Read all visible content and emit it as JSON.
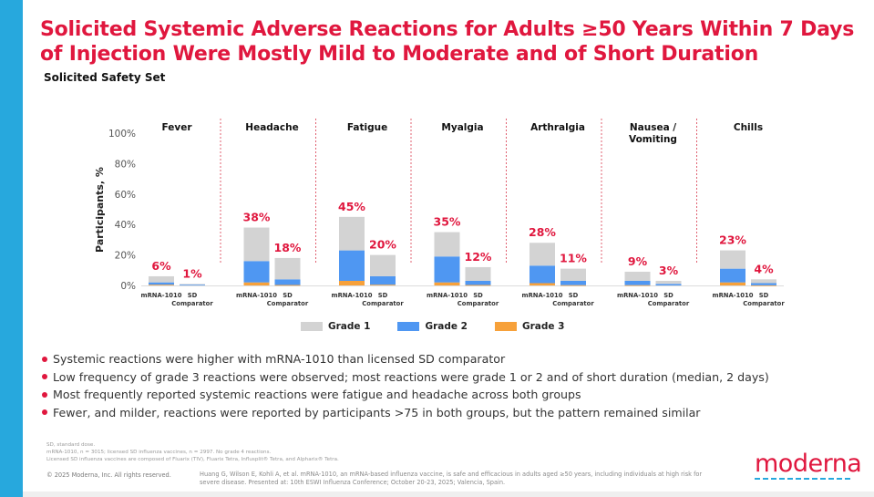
{
  "slide": {
    "title": "Solicited Systemic Adverse Reactions for Adults ≥50 Years Within 7 Days of Injection Were Mostly Mild to Moderate and of Short Duration",
    "subtitle": "Solicited Safety Set",
    "bullets": [
      "Systemic reactions were higher with mRNA-1010 than licensed SD comparator",
      "Low frequency of grade 3 reactions were observed; most reactions were grade 1 or 2 and of short duration (median, 2 days)",
      "Most frequently reported systemic reactions were fatigue and headache across both groups",
      "Fewer, and milder, reactions were reported by participants >75 in both groups, but the pattern remained similar"
    ],
    "footnotes": [
      "SD, standard dose.",
      "mRNA-1010, n = 3015; licensed SD influenza vaccines, n = 2997. No grade 4 reactions.",
      "Licensed SD influenza vaccines are composed of Fluarix (TIV), Fluarix Tetra, Influsplit® Tetra, and Alpharix® Tetra."
    ],
    "copyright": "© 2025 Moderna, Inc. All rights reserved.",
    "citation": "Huang G, Wilson E, Kohli A, et al. mRNA-1010, an mRNA-based influenza vaccine, is safe and efficacious in adults aged ≥50 years, including individuals at high risk for severe disease. Presented at: 10th ESWI Influenza Conference; October 20-23, 2025; Valencia, Spain.",
    "logo_text": "moderna"
  },
  "colors": {
    "accent": "#e0173e",
    "side_bar": "#27a8dd",
    "grade1": "#d3d3d3",
    "grade2": "#4f97f2",
    "grade3": "#f7a13a"
  },
  "chart_data": {
    "type": "bar",
    "stacked": true,
    "title": "",
    "xlabel": "",
    "ylabel": "Participants, %",
    "ylim": [
      0,
      100
    ],
    "yticks": [
      "0%",
      "20%",
      "40%",
      "60%",
      "80%",
      "100%"
    ],
    "ytick_values": [
      0,
      20,
      40,
      60,
      80,
      100
    ],
    "grid": false,
    "legend": {
      "position": "bottom",
      "entries": [
        "Grade 1",
        "Grade 2",
        "Grade 3"
      ]
    },
    "groups": [
      "mRNA-1010",
      "SD Comparator"
    ],
    "categories": [
      "Fever",
      "Headache",
      "Fatigue",
      "Myalgia",
      "Arthralgia",
      "Nausea / Vomiting",
      "Chills"
    ],
    "category_labels": [
      [
        "Fever"
      ],
      [
        "Headache"
      ],
      [
        "Fatigue"
      ],
      [
        "Myalgia"
      ],
      [
        "Arthralgia"
      ],
      [
        "Nausea /",
        "Vomiting"
      ],
      [
        "Chills"
      ]
    ],
    "bar_labels": [
      [
        "mRNA-1010"
      ],
      [
        "SD",
        "Comparator"
      ]
    ],
    "totals": {
      "mRNA-1010": [
        6,
        38,
        45,
        35,
        28,
        9,
        23
      ],
      "SD Comparator": [
        1,
        18,
        20,
        12,
        11,
        3,
        4
      ]
    },
    "total_labels": {
      "mRNA-1010": [
        "6%",
        "38%",
        "45%",
        "35%",
        "28%",
        "9%",
        "23%"
      ],
      "SD Comparator": [
        "1%",
        "18%",
        "20%",
        "12%",
        "11%",
        "3%",
        "4%"
      ]
    },
    "series": [
      {
        "name": "Grade 1",
        "group": "mRNA-1010",
        "values": [
          4,
          22,
          22,
          16,
          15,
          6,
          12
        ]
      },
      {
        "name": "Grade 2",
        "group": "mRNA-1010",
        "values": [
          1.5,
          14,
          20,
          17,
          11.5,
          2.8,
          9
        ]
      },
      {
        "name": "Grade 3",
        "group": "mRNA-1010",
        "values": [
          0.5,
          2,
          3,
          2,
          1.5,
          0.2,
          2
        ]
      },
      {
        "name": "Grade 1",
        "group": "SD Comparator",
        "values": [
          0.5,
          14,
          14,
          9,
          8,
          2,
          2.5
        ]
      },
      {
        "name": "Grade 2",
        "group": "SD Comparator",
        "values": [
          0.5,
          3.7,
          5.5,
          2.7,
          2.8,
          1,
          1.4
        ]
      },
      {
        "name": "Grade 3",
        "group": "SD Comparator",
        "values": [
          0,
          0.3,
          0.5,
          0.3,
          0.2,
          0,
          0.1
        ]
      }
    ]
  }
}
